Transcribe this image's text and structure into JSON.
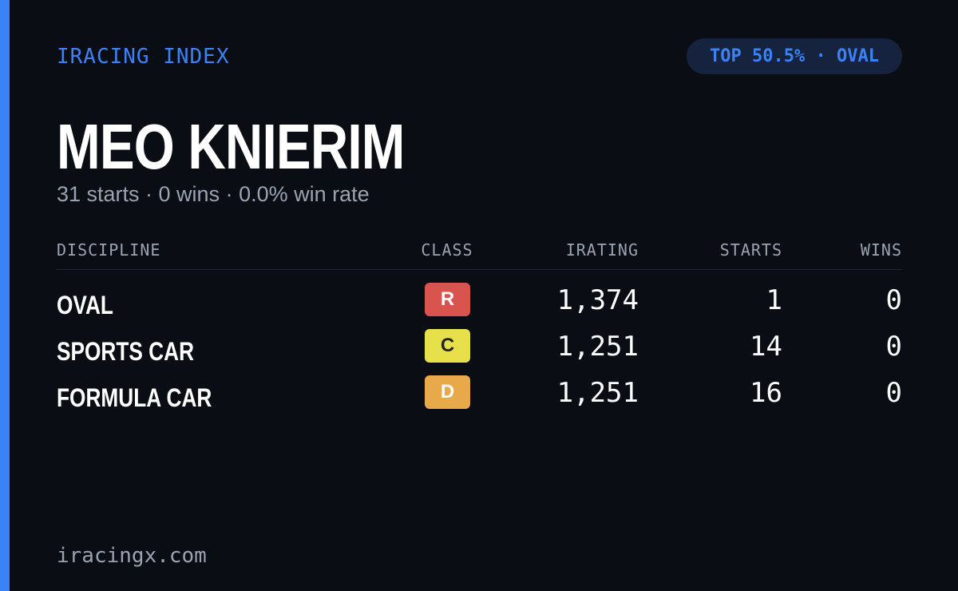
{
  "header": {
    "brand": "IRACING INDEX",
    "badge": "TOP 50.5% · OVAL"
  },
  "profile": {
    "name": "MEO KNIERIM",
    "summary": "31 starts · 0 wins · 0.0% win rate"
  },
  "table": {
    "columns": [
      "DISCIPLINE",
      "CLASS",
      "IRATING",
      "STARTS",
      "WINS"
    ],
    "rows": [
      [
        "OVAL",
        "R",
        "1,374",
        "1",
        "0"
      ],
      [
        "SPORTS CAR",
        "C",
        "1,251",
        "14",
        "0"
      ],
      [
        "FORMULA CAR",
        "D",
        "1,251",
        "16",
        "0"
      ]
    ]
  },
  "footer": {
    "site": "iracingx.com"
  }
}
